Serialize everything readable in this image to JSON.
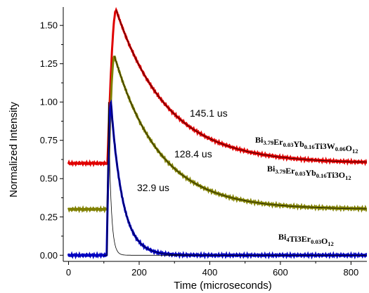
{
  "chart_data": {
    "type": "line",
    "xlabel": "Time (microseconds)",
    "ylabel": "Normalized Intensity",
    "xlim": [
      -15,
      845
    ],
    "ylim": [
      -0.04,
      1.62
    ],
    "x_ticks": [
      0,
      200,
      400,
      600,
      800
    ],
    "y_ticks": [
      0.0,
      0.25,
      0.5,
      0.75,
      1.0,
      1.25,
      1.5
    ],
    "x_tick_labels": [
      "0",
      "200",
      "400",
      "600",
      "800"
    ],
    "y_tick_labels": [
      "0.00",
      "0.25",
      "0.50",
      "0.75",
      "1.00",
      "1.25",
      "1.50"
    ],
    "grid": false,
    "series": [
      {
        "name": "Bi3.79Er0.03Yb0.16Ti3W0.06O12",
        "name_parts": [
          {
            "t": "Bi",
            "sub": false
          },
          {
            "t": "3.79",
            "sub": true
          },
          {
            "t": "Er",
            "sub": false
          },
          {
            "t": "0.03",
            "sub": true
          },
          {
            "t": "Yb",
            "sub": false
          },
          {
            "t": "0.16",
            "sub": true
          },
          {
            "t": "Ti",
            "sub": false
          },
          {
            "t": "3",
            "sub": false
          },
          {
            "t": "W",
            "sub": false
          },
          {
            "t": "0.06",
            "sub": true
          },
          {
            "t": "O",
            "sub": false
          },
          {
            "t": "12",
            "sub": true
          }
        ],
        "color": "#e00000",
        "baseline": 0.6,
        "peak": 1.6,
        "rise_start": 110,
        "peak_time": 135,
        "lifetime_label": "145.1 us",
        "lifetime": 145.1
      },
      {
        "name": "Bi3.79Er0.03Yb0.16Ti3O12",
        "name_parts": [
          {
            "t": "Bi",
            "sub": false
          },
          {
            "t": "3.79",
            "sub": true
          },
          {
            "t": "Er",
            "sub": false
          },
          {
            "t": "0.03",
            "sub": true
          },
          {
            "t": "Yb",
            "sub": false
          },
          {
            "t": "0.16",
            "sub": true
          },
          {
            "t": "Ti",
            "sub": false
          },
          {
            "t": "3",
            "sub": false
          },
          {
            "t": "O",
            "sub": false
          },
          {
            "t": "12",
            "sub": true
          }
        ],
        "color": "#808000",
        "baseline": 0.3,
        "peak": 1.3,
        "rise_start": 110,
        "peak_time": 130,
        "lifetime_label": "128.4 us",
        "lifetime": 128.4
      },
      {
        "name": "Bi4Ti3Er0.03O12",
        "name_parts": [
          {
            "t": "Bi",
            "sub": false
          },
          {
            "t": "4",
            "sub": true
          },
          {
            "t": "Ti",
            "sub": false
          },
          {
            "t": "3",
            "sub": false
          },
          {
            "t": "Er",
            "sub": false
          },
          {
            "t": "0.03",
            "sub": true
          },
          {
            "t": "O",
            "sub": false
          },
          {
            "t": "12",
            "sub": true
          }
        ],
        "color": "#0000c0",
        "baseline": 0.0,
        "peak": 1.0,
        "rise_start": 108,
        "peak_time": 120,
        "lifetime_label": "32.9 us",
        "lifetime": 32.9
      }
    ],
    "instrument_response": {
      "color": "#000000",
      "peak": 1.0,
      "peak_time": 113,
      "decay": 7
    }
  }
}
